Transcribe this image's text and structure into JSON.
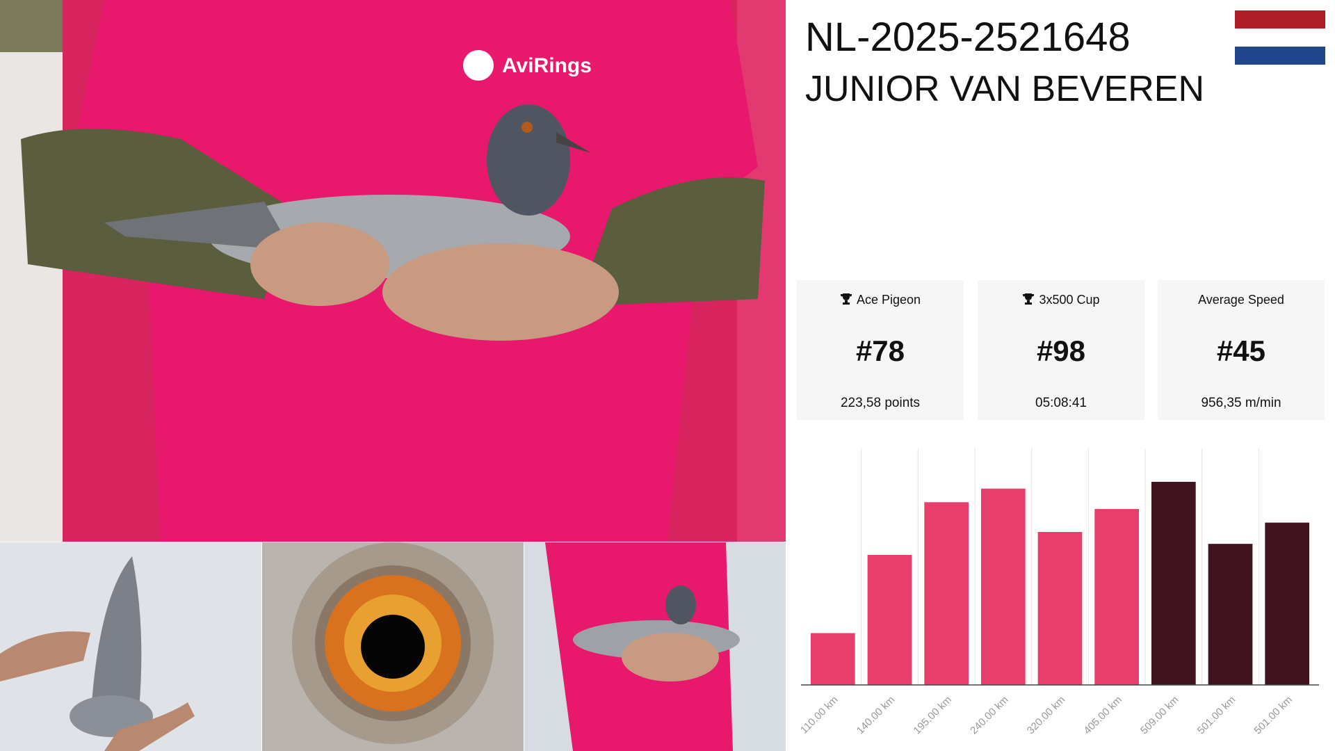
{
  "header": {
    "ring": "NL-2025-2521648",
    "name": "JUNIOR VAN BEVEREN"
  },
  "photo_logo": "AviRings",
  "stats": [
    {
      "label": "Ace Pigeon",
      "value": "#78",
      "detail": "223,58 points",
      "trophy": true
    },
    {
      "label": "3x500 Cup",
      "value": "#98",
      "detail": "05:08:41",
      "trophy": true
    },
    {
      "label": "Average Speed",
      "value": "#45",
      "detail": "956,35 m/min",
      "trophy": false
    }
  ],
  "chart_data": {
    "type": "bar",
    "categories": [
      "110.00 km",
      "140.00 km",
      "195.00 km",
      "240.00 km",
      "320.00 km",
      "405.00 km",
      "509.00 km",
      "501.00 km",
      "501.00 km"
    ],
    "values": [
      61,
      153,
      215,
      231,
      180,
      207,
      239,
      166,
      191
    ],
    "colors": [
      "#e83e6c",
      "#e83e6c",
      "#e83e6c",
      "#e83e6c",
      "#e83e6c",
      "#e83e6c",
      "#40141f",
      "#40141f",
      "#40141f"
    ],
    "ylim": [
      0,
      270
    ]
  }
}
